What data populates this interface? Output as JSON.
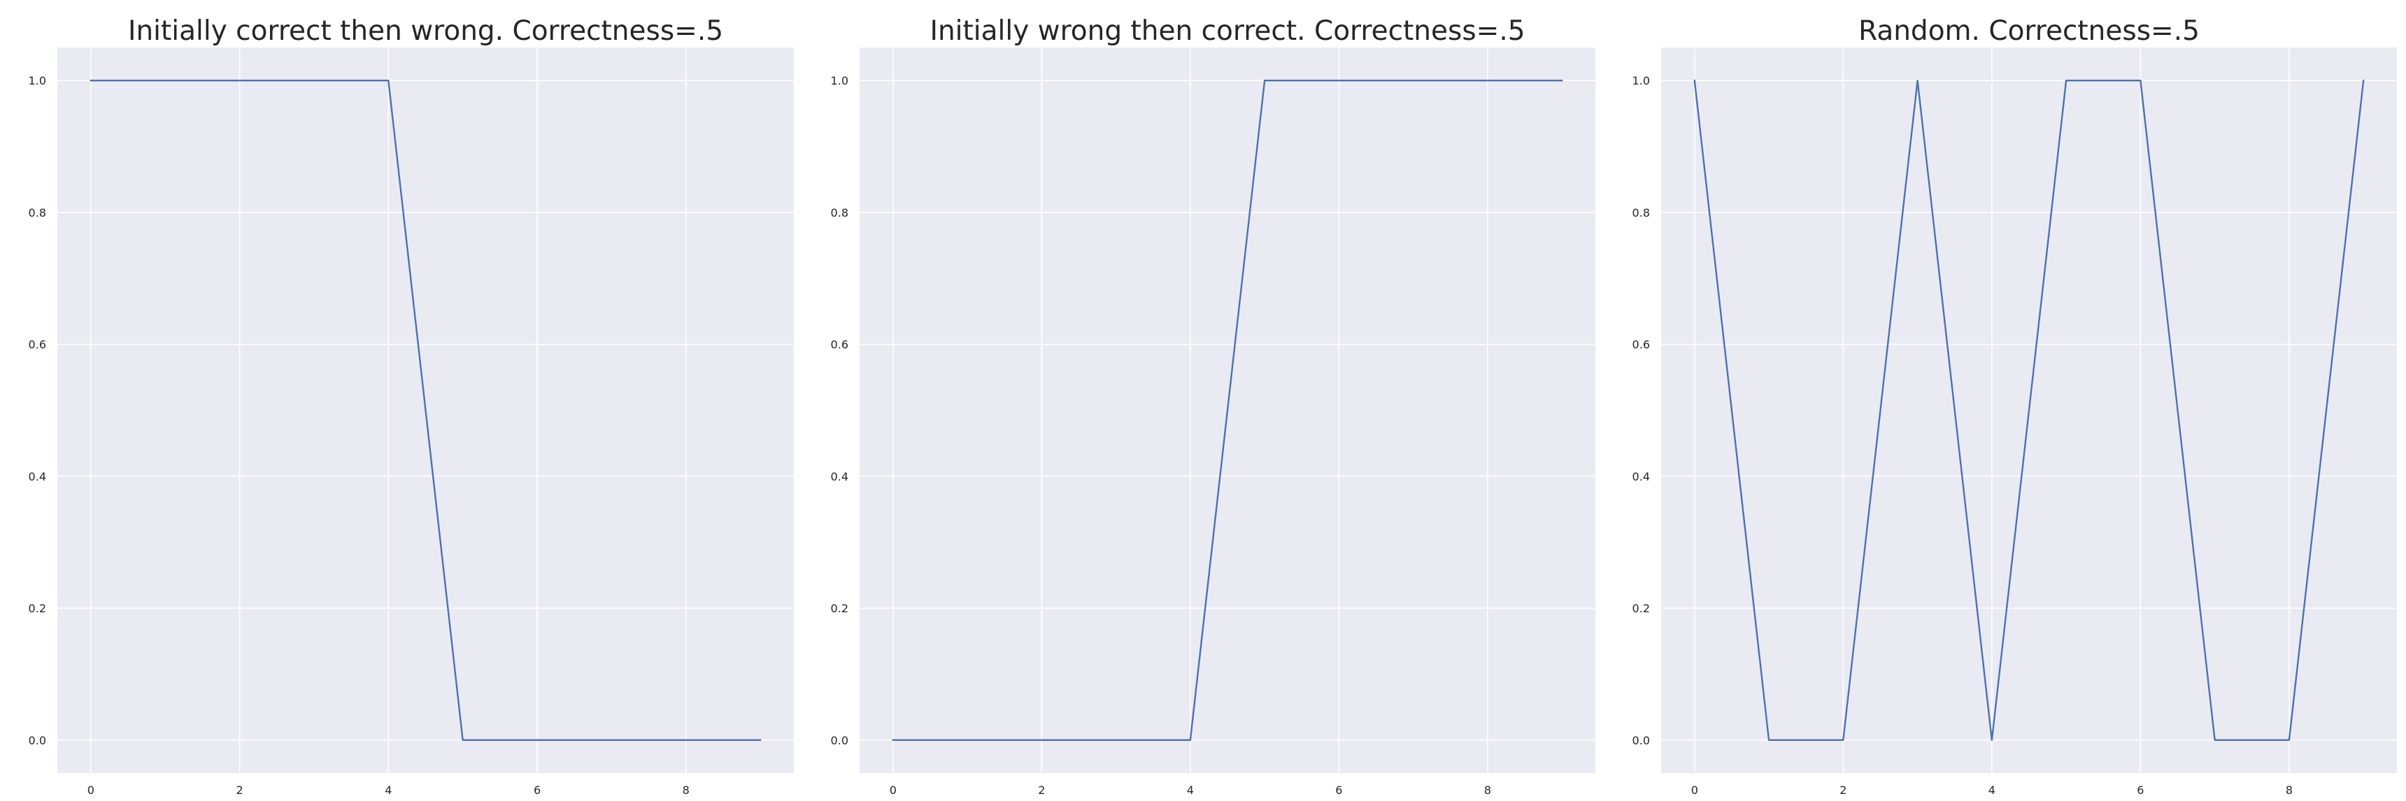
{
  "chart_data": [
    {
      "type": "line",
      "title": "Initially correct then wrong. Correctness=.5",
      "x": [
        0,
        1,
        2,
        3,
        4,
        5,
        6,
        7,
        8,
        9
      ],
      "series": [
        {
          "values": [
            1,
            1,
            1,
            1,
            1,
            0,
            0,
            0,
            0,
            0
          ]
        }
      ],
      "xticks": [
        "0",
        "2",
        "4",
        "6",
        "8"
      ],
      "yticks": [
        "0.0",
        "0.2",
        "0.4",
        "0.6",
        "0.8",
        "1.0"
      ],
      "xlim": [
        -0.45,
        9.45
      ],
      "ylim": [
        -0.05,
        1.05
      ],
      "grid": true,
      "color": "#4c72b0"
    },
    {
      "type": "line",
      "title": "Initially wrong then correct. Correctness=.5",
      "x": [
        0,
        1,
        2,
        3,
        4,
        5,
        6,
        7,
        8,
        9
      ],
      "series": [
        {
          "values": [
            0,
            0,
            0,
            0,
            0,
            1,
            1,
            1,
            1,
            1
          ]
        }
      ],
      "xticks": [
        "0",
        "2",
        "4",
        "6",
        "8"
      ],
      "yticks": [
        "0.0",
        "0.2",
        "0.4",
        "0.6",
        "0.8",
        "1.0"
      ],
      "xlim": [
        -0.45,
        9.45
      ],
      "ylim": [
        -0.05,
        1.05
      ],
      "grid": true,
      "color": "#4c72b0"
    },
    {
      "type": "line",
      "title": "Random. Correctness=.5",
      "x": [
        0,
        1,
        2,
        3,
        4,
        5,
        6,
        7,
        8,
        9
      ],
      "series": [
        {
          "values": [
            1,
            0,
            0,
            1,
            0,
            1,
            1,
            0,
            0,
            1
          ]
        }
      ],
      "xticks": [
        "0",
        "2",
        "4",
        "6",
        "8"
      ],
      "yticks": [
        "0.0",
        "0.2",
        "0.4",
        "0.6",
        "0.8",
        "1.0"
      ],
      "xlim": [
        -0.45,
        9.45
      ],
      "ylim": [
        -0.05,
        1.05
      ],
      "grid": true,
      "color": "#4c72b0"
    }
  ]
}
